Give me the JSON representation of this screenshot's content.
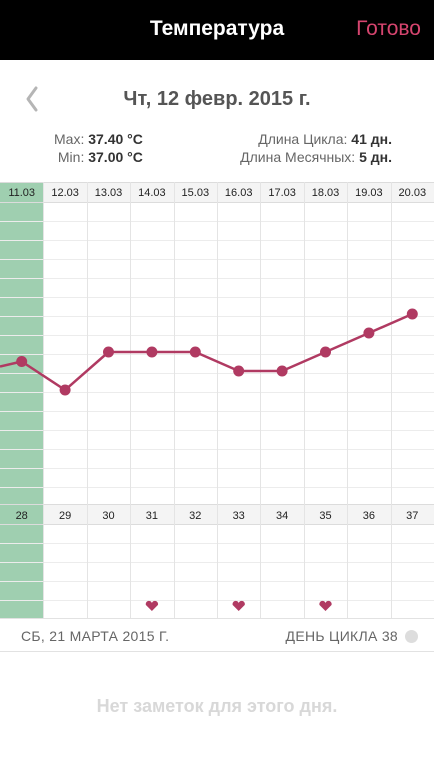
{
  "navbar": {
    "title": "Температура",
    "done_label": "Готово"
  },
  "date_header": {
    "title": "Чт, 12 февр. 2015 г."
  },
  "stats": {
    "max_label": "Max:",
    "max_value": "37.40 °C",
    "min_label": "Min:",
    "min_value": "37.00 °C",
    "cycle_length_label": "Длина Цикла:",
    "cycle_length_value": "41 дн.",
    "period_length_label": "Длина Месячных:",
    "period_length_value": "5 дн."
  },
  "colors": {
    "accent": "#b03a62",
    "highlight": "#9fcfb0",
    "done": "#d6456f"
  },
  "chart_data": {
    "type": "line",
    "dates": [
      "11.03",
      "12.03",
      "13.03",
      "14.03",
      "15.03",
      "16.03",
      "17.03",
      "18.03",
      "19.03",
      "20.03"
    ],
    "cycle_days": [
      "28",
      "29",
      "30",
      "31",
      "32",
      "33",
      "34",
      "35",
      "36",
      "37"
    ],
    "values": [
      37.15,
      37.0,
      37.2,
      37.2,
      37.2,
      37.1,
      37.1,
      37.2,
      37.3,
      37.4
    ],
    "highlighted_index": 0,
    "heart_icon_indices": [
      3,
      5,
      7
    ]
  },
  "bottom_bar": {
    "date": "СБ, 21 МАРТА 2015 Г.",
    "cycle_day": "ДЕНЬ ЦИКЛА 38"
  },
  "notes": {
    "empty_text": "Нет заметок для этого дня."
  }
}
